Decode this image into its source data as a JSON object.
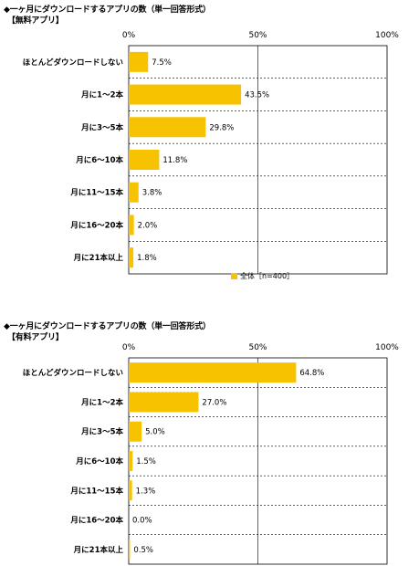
{
  "chart_data": [
    {
      "type": "bar",
      "title": "◆一ヶ月にダウンロードするアプリの数（単一回答形式）",
      "subtitle": "【無料アプリ】",
      "axis_ticks": [
        "0%",
        "50%",
        "100%"
      ],
      "xlim": [
        0,
        100
      ],
      "categories": [
        "ほとんどダウンロードしない",
        "月に1～2本",
        "月に3～5本",
        "月に6～10本",
        "月に11～15本",
        "月に16～20本",
        "月に21本以上"
      ],
      "values": [
        7.5,
        43.5,
        29.8,
        11.8,
        3.8,
        2.0,
        1.8
      ],
      "value_labels": [
        "7.5%",
        "43.5%",
        "29.8%",
        "11.8%",
        "3.8%",
        "2.0%",
        "1.8%"
      ],
      "legend": "全体［n=400］",
      "color": "#F7C200"
    },
    {
      "type": "bar",
      "title": "◆一ヶ月にダウンロードするアプリの数（単一回答形式）",
      "subtitle": "【有料アプリ】",
      "axis_ticks": [
        "0%",
        "50%",
        "100%"
      ],
      "xlim": [
        0,
        100
      ],
      "categories": [
        "ほとんどダウンロードしない",
        "月に1～2本",
        "月に3～5本",
        "月に6～10本",
        "月に11～15本",
        "月に16～20本",
        "月に21本以上"
      ],
      "values": [
        64.8,
        27.0,
        5.0,
        1.5,
        1.3,
        0.0,
        0.5
      ],
      "value_labels": [
        "64.8%",
        "27.0%",
        "5.0%",
        "1.5%",
        "1.3%",
        "0.0%",
        "0.5%"
      ],
      "color": "#F7C200"
    }
  ]
}
